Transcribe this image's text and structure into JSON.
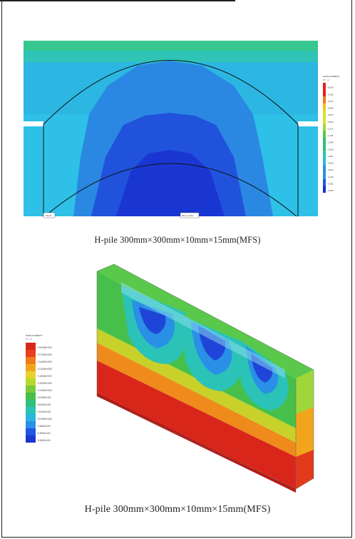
{
  "figure1": {
    "caption": "H-pile  300mm×300mm×10mm×15mm(MFS)",
    "legend_title": "DISPLACEMENT",
    "legend_subtitle": "TY , m",
    "legend_values": [
      "-0.000",
      "-0.169",
      "-0.337",
      "-0.506",
      "-0.675",
      "-0.843",
      "-1.012",
      "-1.181",
      "-1.349",
      "-1.518",
      "-1.687",
      "-1.855",
      "-2.024",
      "-2.193",
      "-2.361",
      "-2.530"
    ],
    "label_left": "Pile B",
    "label_center": "Pile 1.0 100",
    "colors": [
      "#e8201a",
      "#f27a17",
      "#f3c11c",
      "#d8e02a",
      "#9fd73a",
      "#58c84a",
      "#2fc07a",
      "#2bc2b8",
      "#2bb6e0",
      "#2a8fe6",
      "#2255e0",
      "#1730d4"
    ]
  },
  "figure2": {
    "caption": "H-pile  300mm×300mm×10mm×15mm(MFS)",
    "legend_title": "DISPLACEMENT",
    "legend_subtitle": "TY , m",
    "legend_values": [
      "+3.0000e+000",
      "+2.7000e+000",
      "+2.4000e+000",
      "+2.1000e+000",
      "+1.8000e+000",
      "+1.5000e+000",
      "+1.2000e+000",
      "+9.0000e-001",
      "+6.0000e-001",
      "+3.0000e-001",
      "+0.0000e+000",
      "-3.0000e-001",
      "-6.0000e-001",
      "-9.0000e-001"
    ]
  }
}
